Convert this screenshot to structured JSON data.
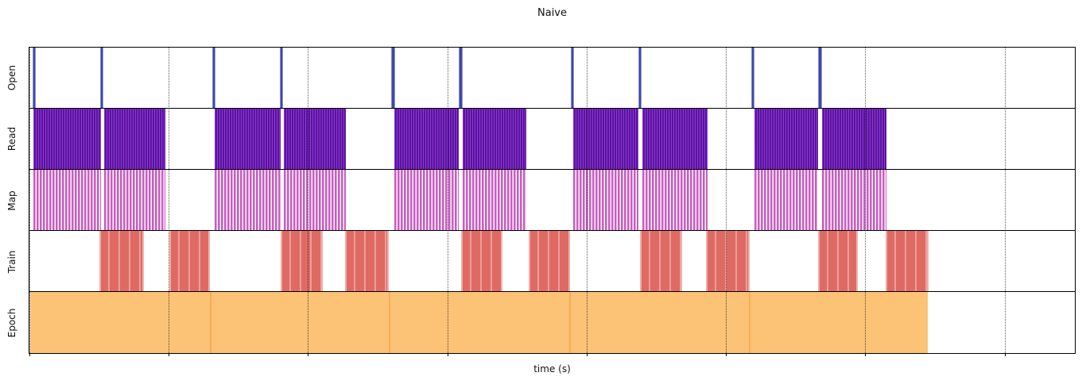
{
  "title": "Naive",
  "xlabel": "time (s)",
  "colors": {
    "open_bar": "#3f48a6",
    "open_bar_edge": "#8a91d2",
    "read_dark": "#5c129f",
    "read_light": "#8a3bd1",
    "map_bar": "#c75ec0",
    "map_light": "#e2a0dd",
    "train_bar": "#df6a64",
    "train_light": "#ec9e98",
    "epoch_bar": "#fcc276",
    "epoch_divider": "#f8ae55",
    "gridline": "#000000",
    "axis": "#000000"
  },
  "chart_data": {
    "type": "bar",
    "subtype": "broken-bar-timeline",
    "title": "Naive",
    "xlabel": "time (s)",
    "ylabel": "",
    "legend": "none",
    "x_axis": {
      "unit": "axis-px (no tick labels shown)",
      "min": 0,
      "max": 1317,
      "tick_spacing": 175.5,
      "ticks": [
        0,
        175.5,
        351,
        526.5,
        702,
        877.5,
        1053,
        1228.5
      ],
      "tick_labels": [],
      "gridlines": "dotted-vertical"
    },
    "lanes": [
      {
        "label": "Open",
        "style": "open",
        "intervals": [
          [
            4,
            8.5
          ],
          [
            89,
            93.5
          ],
          [
            230,
            234.5
          ],
          [
            315,
            319.5
          ],
          [
            456,
            460.5
          ],
          [
            541,
            545.5
          ],
          [
            682,
            686.5
          ],
          [
            767,
            771.5
          ],
          [
            909,
            913.5
          ],
          [
            994,
            998.5
          ]
        ]
      },
      {
        "label": "Read",
        "style": "read",
        "intervals": [
          [
            5,
            90
          ],
          [
            94,
            171
          ],
          [
            233,
            316
          ],
          [
            320,
            399
          ],
          [
            460,
            541
          ],
          [
            546,
            626
          ],
          [
            685,
            767
          ],
          [
            772,
            854
          ],
          [
            913,
            994
          ],
          [
            999,
            1080
          ]
        ]
      },
      {
        "label": "Map",
        "style": "map",
        "intervals": [
          [
            5,
            90
          ],
          [
            94,
            171
          ],
          [
            233,
            316
          ],
          [
            320,
            399
          ],
          [
            460,
            541
          ],
          [
            546,
            626
          ],
          [
            685,
            767
          ],
          [
            772,
            854
          ],
          [
            913,
            994
          ],
          [
            999,
            1080
          ]
        ]
      },
      {
        "label": "Train",
        "style": "train",
        "intervals": [
          [
            88,
            144
          ],
          [
            176,
            227
          ],
          [
            316,
            370
          ],
          [
            398,
            453
          ],
          [
            544,
            596
          ],
          [
            629,
            681
          ],
          [
            769,
            822
          ],
          [
            852,
            907
          ],
          [
            994,
            1044
          ],
          [
            1079,
            1133
          ]
        ]
      },
      {
        "label": "Epoch",
        "style": "epoch",
        "intervals": [
          [
            1,
            227
          ],
          [
            227,
            453
          ],
          [
            453,
            680
          ],
          [
            680,
            906
          ],
          [
            906,
            1132
          ]
        ]
      }
    ]
  }
}
